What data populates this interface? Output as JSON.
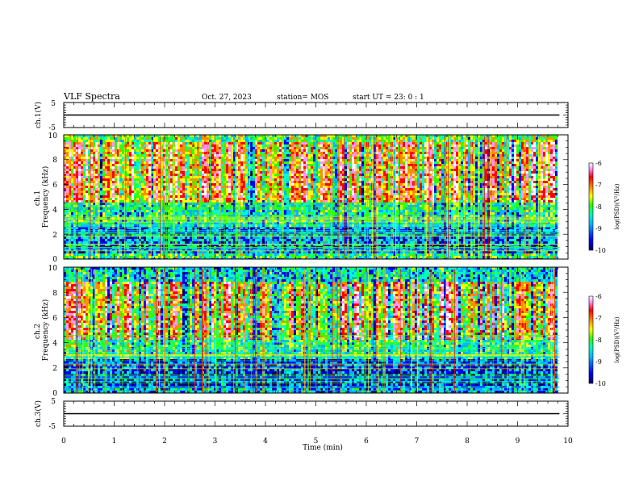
{
  "header": {
    "title": "VLF Spectra",
    "date": "Oct. 27, 2023",
    "station": "station= MOS",
    "start_ut": "start  UT =   23: 0  : 1"
  },
  "chart_data": [
    {
      "type": "line",
      "panel": "ch1-waveform",
      "ylabel": "ch.1(V)",
      "ylim": [
        -5,
        5
      ],
      "yticks": [
        "5",
        "-5"
      ],
      "xlim": [
        0,
        10
      ],
      "series": [
        {
          "x": [
            0,
            9.83
          ],
          "y": [
            0,
            0
          ]
        }
      ],
      "color": "#000000"
    },
    {
      "type": "heatmap",
      "panel": "ch1-spectrogram",
      "ylabel": "ch.1\nFrequency  (kHz)",
      "ylim": [
        0,
        10
      ],
      "yticks": [
        "0",
        "2",
        "4",
        "6",
        "8",
        "10"
      ],
      "xlim": [
        0,
        10
      ],
      "data_end_min": 9.83,
      "colorbar": {
        "label": "log(PSD)(V²/Hz)",
        "range": [
          -10,
          -6
        ],
        "ticks": [
          "-6",
          "-7",
          "-8",
          "-9",
          "-10"
        ]
      },
      "band_intensity": [
        {
          "f": [
            0.0,
            0.5
          ],
          "level": 0.45
        },
        {
          "f": [
            0.5,
            2.5
          ],
          "level": 0.25
        },
        {
          "f": [
            2.5,
            4.5
          ],
          "level": 0.4
        },
        {
          "f": [
            4.5,
            9.5
          ],
          "level": 0.85
        },
        {
          "f": [
            9.5,
            10.0
          ],
          "level": 0.5
        }
      ]
    },
    {
      "type": "heatmap",
      "panel": "ch2-spectrogram",
      "ylabel": "ch.2\nFrequency  (kHz)",
      "ylim": [
        0,
        10
      ],
      "yticks": [
        "0",
        "2",
        "4",
        "6",
        "8",
        "10"
      ],
      "xlim": [
        0,
        10
      ],
      "data_end_min": 9.83,
      "colorbar": {
        "label": "log(PSD)(V²/Hz)",
        "range": [
          -10,
          -6
        ],
        "ticks": [
          "-6",
          "-7",
          "-8",
          "-9",
          "-10"
        ]
      },
      "band_intensity": [
        {
          "f": [
            0.0,
            0.4
          ],
          "level": 0.3
        },
        {
          "f": [
            0.4,
            2.6
          ],
          "level": 0.2
        },
        {
          "f": [
            2.6,
            4.2
          ],
          "level": 0.45
        },
        {
          "f": [
            4.2,
            8.8
          ],
          "level": 0.8
        },
        {
          "f": [
            8.8,
            10.0
          ],
          "level": 0.35
        }
      ]
    },
    {
      "type": "line",
      "panel": "ch3-waveform",
      "ylabel": "ch.3(V)",
      "ylim": [
        -5,
        5
      ],
      "yticks": [
        "5",
        "-5"
      ],
      "xlim": [
        0,
        10
      ],
      "series": [
        {
          "x": [
            0,
            9.83
          ],
          "y": [
            0,
            0
          ]
        }
      ],
      "color": "#000000"
    }
  ],
  "xaxis": {
    "label": "Time  (min)",
    "ticks": [
      "0",
      "1",
      "2",
      "3",
      "4",
      "5",
      "6",
      "7",
      "8",
      "9",
      "10"
    ],
    "range": [
      0,
      10
    ]
  },
  "colors": {
    "colormap": [
      "#00006e",
      "#0000ff",
      "#00b4ff",
      "#00ffc8",
      "#32ff00",
      "#ffff00",
      "#ff8c00",
      "#ff0000",
      "#ff96ff",
      "#ffffff"
    ]
  }
}
